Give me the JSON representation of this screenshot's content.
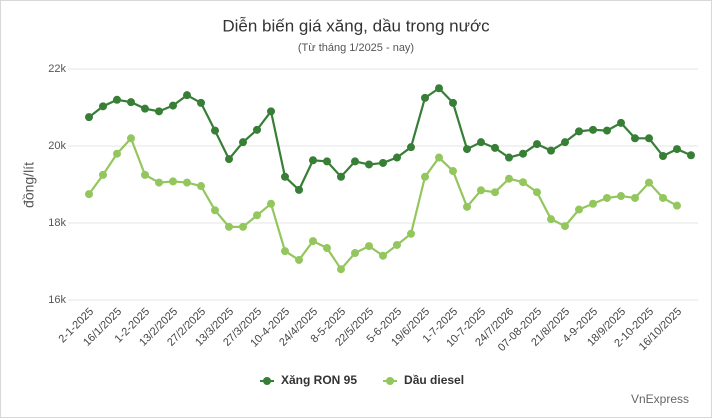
{
  "chart_data": {
    "type": "line",
    "title": "Diễn biến giá xăng, dầu trong nước",
    "subtitle": "(Từ tháng 1/2025 - nay)",
    "y_label": "đồng/lít",
    "source": "VnExpress",
    "categories": [
      "2-1-2025",
      null,
      "16/1/2025",
      null,
      "1-2-2025",
      null,
      "13/2/2025",
      null,
      "27/2/2025",
      null,
      "13/3/2025",
      null,
      "27/3/2025",
      null,
      "10-4-2025",
      null,
      "24/4/2025",
      null,
      "8-5-2025",
      null,
      "22/5/2025",
      null,
      "5-6-2025",
      null,
      "19/6/2025",
      null,
      "1-7-2025",
      null,
      "10-7-2025",
      null,
      "24/7/2026",
      null,
      "07-08-2025",
      null,
      "21/8/2025",
      null,
      "4-9-2025",
      null,
      "18/9/2025",
      null,
      "2-10-2025",
      null,
      "16/10/2025",
      null
    ],
    "series": [
      {
        "name": "Xăng RON 95",
        "color": "#377e37",
        "values": [
          20.75,
          21.03,
          21.2,
          21.14,
          20.97,
          20.9,
          21.05,
          21.32,
          21.12,
          20.4,
          19.66,
          20.1,
          20.42,
          20.9,
          19.2,
          18.86,
          19.63,
          19.6,
          19.2,
          19.6,
          19.52,
          19.56,
          19.7,
          19.97,
          21.25,
          21.5,
          21.12,
          19.92,
          20.1,
          19.95,
          19.7,
          19.8,
          20.05,
          19.88,
          20.1,
          20.38,
          20.42,
          20.4,
          20.6,
          20.2,
          20.2,
          19.74,
          19.92,
          19.76
        ]
      },
      {
        "name": "Dầu diesel",
        "color": "#94c65e",
        "values": [
          18.75,
          19.25,
          19.8,
          20.2,
          19.25,
          19.05,
          19.08,
          19.05,
          18.96,
          18.33,
          17.9,
          17.9,
          18.2,
          18.5,
          17.27,
          17.04,
          17.53,
          17.35,
          16.8,
          17.22,
          17.4,
          17.15,
          17.43,
          17.72,
          19.2,
          19.7,
          19.35,
          18.42,
          18.85,
          18.8,
          19.15,
          19.06,
          18.8,
          18.1,
          17.92,
          18.35,
          18.5,
          18.65,
          18.7,
          18.65,
          19.05,
          18.65,
          18.45,
          null
        ]
      }
    ],
    "ylim": [
      16,
      22
    ],
    "yticks": [
      {
        "value": 16,
        "label": "16k"
      },
      {
        "value": 18,
        "label": "18k"
      },
      {
        "value": 20,
        "label": "20k"
      },
      {
        "value": 22,
        "label": "22k"
      }
    ],
    "grid": true,
    "legend": "bottom"
  }
}
